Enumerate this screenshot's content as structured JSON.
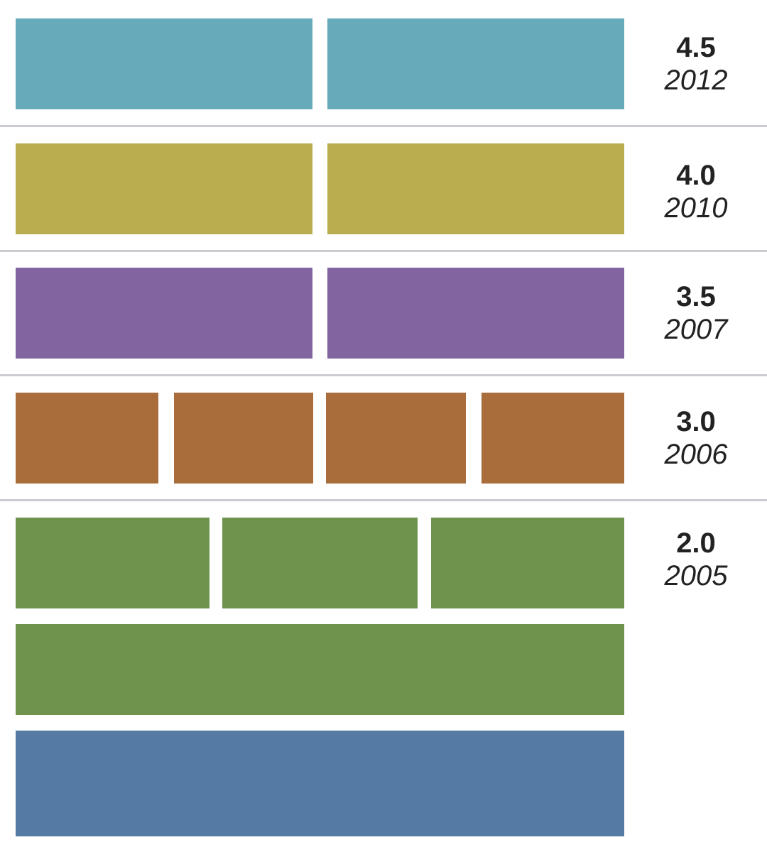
{
  "colors": {
    "v45": "#67abbb",
    "v40": "#b9ae4f",
    "v35": "#8265a0",
    "v30": "#a86d3b",
    "v20": "#6f924d",
    "base": "#557aa4",
    "divider": "#cdcbd1"
  },
  "rows": [
    {
      "version": "4.5",
      "year": "2012"
    },
    {
      "version": "4.0",
      "year": "2010"
    },
    {
      "version": "3.5",
      "year": "2007"
    },
    {
      "version": "3.0",
      "year": "2006"
    },
    {
      "version": "2.0",
      "year": "2005"
    }
  ]
}
